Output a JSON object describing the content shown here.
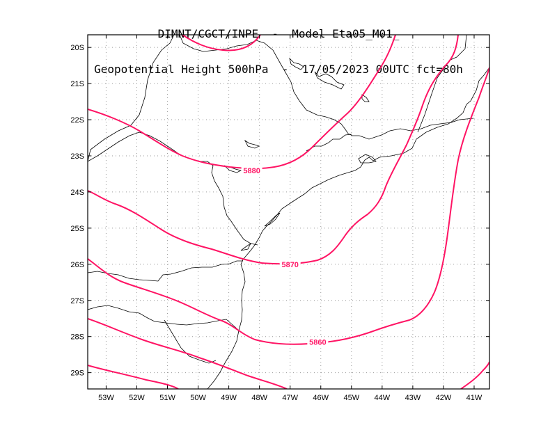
{
  "title": {
    "line1": "DIMNT/CGCT/INPE  -  Model Eta05_M01_",
    "line2": "Geopotential Height 500hPa  -  17/05/2023 00UTC fct=80h"
  },
  "colors": {
    "contour": "#ff1464",
    "coast": "#000000",
    "grid": "#9a9a9a"
  },
  "map": {
    "lon_range": [
      -53.6,
      -40.5
    ],
    "lat_range": [
      -29.45,
      -19.65
    ],
    "lat_labels": [
      {
        "value": -20,
        "text": "20S"
      },
      {
        "value": -21,
        "text": "21S"
      },
      {
        "value": -22,
        "text": "22S"
      },
      {
        "value": -23,
        "text": "23S"
      },
      {
        "value": -24,
        "text": "24S"
      },
      {
        "value": -25,
        "text": "25S"
      },
      {
        "value": -26,
        "text": "26S"
      },
      {
        "value": -27,
        "text": "27S"
      },
      {
        "value": -28,
        "text": "28S"
      },
      {
        "value": -29,
        "text": "29S"
      }
    ],
    "lon_labels": [
      {
        "value": -53,
        "text": "53W"
      },
      {
        "value": -52,
        "text": "52W"
      },
      {
        "value": -51,
        "text": "51W"
      },
      {
        "value": -50,
        "text": "50W"
      },
      {
        "value": -49,
        "text": "49W"
      },
      {
        "value": -48,
        "text": "48W"
      },
      {
        "value": -47,
        "text": "47W"
      },
      {
        "value": -46,
        "text": "46W"
      },
      {
        "value": -45,
        "text": "45W"
      },
      {
        "value": -44,
        "text": "44W"
      },
      {
        "value": -43,
        "text": "43W"
      },
      {
        "value": -42,
        "text": "42W"
      },
      {
        "value": -41,
        "text": "41W"
      }
    ],
    "contour_labels": [
      {
        "text": "5880",
        "lon": -48.25,
        "lat": -23.4
      },
      {
        "text": "5870",
        "lon": -47.0,
        "lat": -26.0
      },
      {
        "text": "5860",
        "lon": -46.1,
        "lat": -28.15
      }
    ]
  }
}
